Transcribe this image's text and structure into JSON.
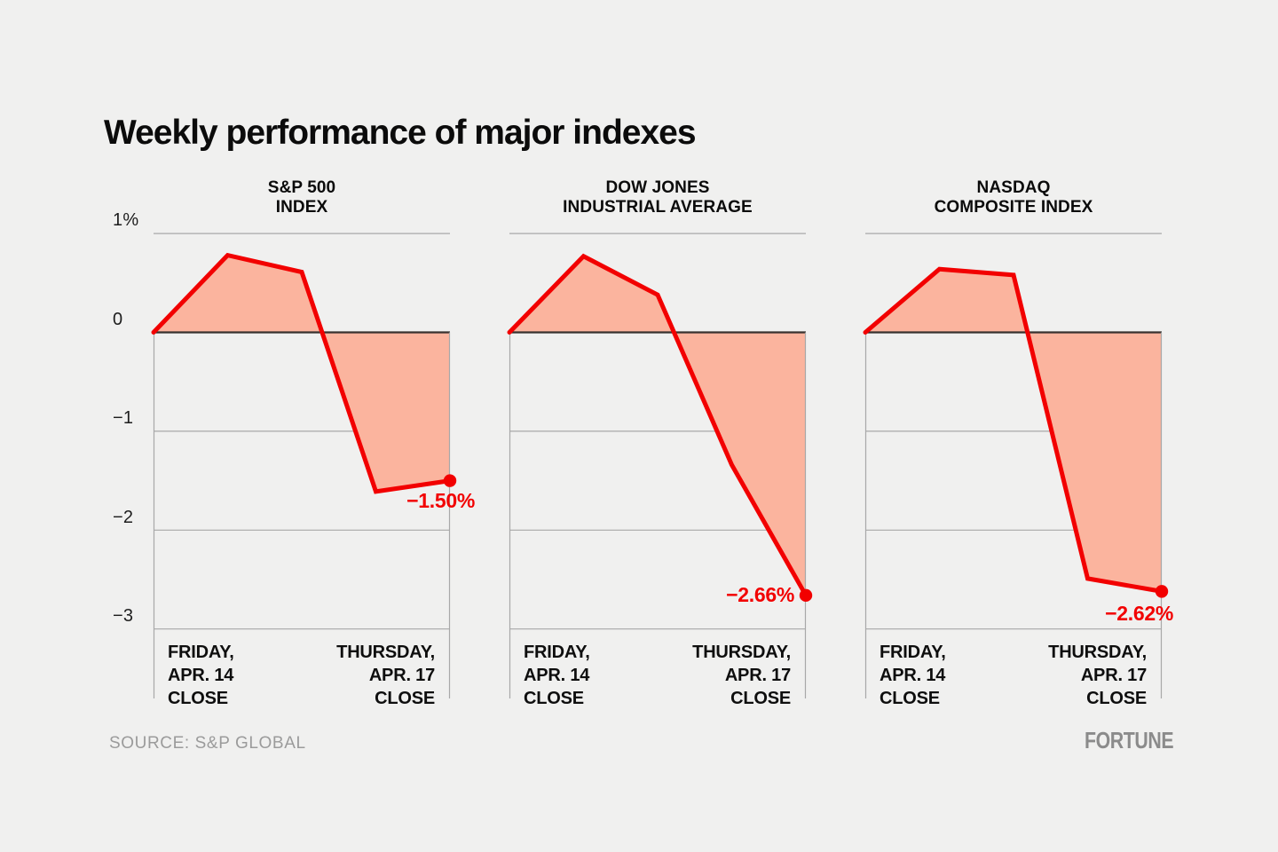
{
  "title": "Weekly performance of major indexes",
  "source": "SOURCE: S&P GLOBAL",
  "logo": "FORTUNE",
  "colors": {
    "background": "#f0f0ef",
    "line": "#f20000",
    "area_fill": "#fbb49e",
    "grid": "#a8a8a8",
    "zero_line": "#38322f",
    "text": "#0b0b0b",
    "muted_text": "#9b9b9b"
  },
  "chart_data": {
    "type": "area",
    "ylim": [
      -3,
      1
    ],
    "y_ticks": [
      "1%",
      "0",
      "−1",
      "−2",
      "−3"
    ],
    "y_tick_values": [
      1,
      0,
      -1,
      -2,
      -3
    ],
    "x_tick_labels": [
      "FRIDAY,\nAPR. 14\nCLOSE",
      "THURSDAY,\nAPR. 17\nCLOSE"
    ],
    "grid": true,
    "legend": false,
    "series": [
      {
        "name": "S&P 500 INDEX",
        "title": "S&P 500\nINDEX",
        "values": [
          0,
          0.78,
          0.61,
          -1.61,
          -1.5
        ],
        "end_label": "−1.50%"
      },
      {
        "name": "DOW JONES INDUSTRIAL AVERAGE",
        "title": "DOW JONES\nINDUSTRIAL AVERAGE",
        "values": [
          0,
          0.77,
          0.38,
          -1.34,
          -2.66
        ],
        "end_label": "−2.66%"
      },
      {
        "name": "NASDAQ COMPOSITE INDEX",
        "title": "NASDAQ\nCOMPOSITE INDEX",
        "values": [
          0,
          0.64,
          0.58,
          -2.49,
          -2.62
        ],
        "end_label": "−2.62%"
      }
    ]
  }
}
